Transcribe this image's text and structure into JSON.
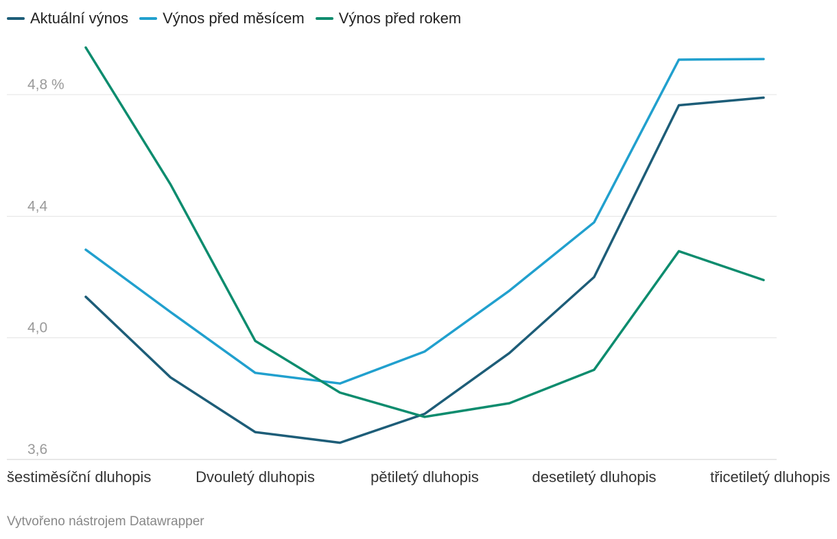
{
  "legend": {
    "items": [
      {
        "label": "Aktuální výnos",
        "color": "#1d5d78"
      },
      {
        "label": "Výnos před měsícem",
        "color": "#21a0ce"
      },
      {
        "label": "Výnos před rokem",
        "color": "#0d8c6e"
      }
    ]
  },
  "footer": {
    "credit": "Vytvořeno nástrojem Datawrapper"
  },
  "chart_data": {
    "type": "line",
    "title": "",
    "xlabel": "",
    "ylabel": "",
    "x": [
      0,
      1,
      2,
      3,
      4,
      5,
      6,
      7,
      8
    ],
    "x_tick_labels": [
      {
        "pos": 0,
        "label": "šestiměsíční dluhopis"
      },
      {
        "pos": 2,
        "label": "Dvouletý dluhopis"
      },
      {
        "pos": 4,
        "label": "pětiletý dluhopis"
      },
      {
        "pos": 6,
        "label": "desetiletý dluhopis"
      },
      {
        "pos": 8,
        "label": "třicetiletý dluhopis"
      }
    ],
    "ylim": [
      3.6,
      5.0
    ],
    "y_ticks": [
      {
        "value": 3.6,
        "label": "3,6"
      },
      {
        "value": 4.0,
        "label": "4,0"
      },
      {
        "value": 4.4,
        "label": "4,4"
      },
      {
        "value": 4.8,
        "label": "4,8 %"
      }
    ],
    "grid": true,
    "series": [
      {
        "name": "Aktuální výnos",
        "color": "#1d5d78",
        "values": [
          4.135,
          3.87,
          3.69,
          3.655,
          3.75,
          3.95,
          4.2,
          4.765,
          4.79
        ]
      },
      {
        "name": "Výnos před měsícem",
        "color": "#21a0ce",
        "values": [
          4.29,
          4.085,
          3.885,
          3.85,
          3.955,
          4.155,
          4.38,
          4.915,
          4.917
        ]
      },
      {
        "name": "Výnos před rokem",
        "color": "#0d8c6e",
        "values": [
          4.955,
          4.505,
          3.99,
          3.82,
          3.74,
          3.785,
          3.895,
          4.285,
          4.19
        ]
      }
    ]
  }
}
